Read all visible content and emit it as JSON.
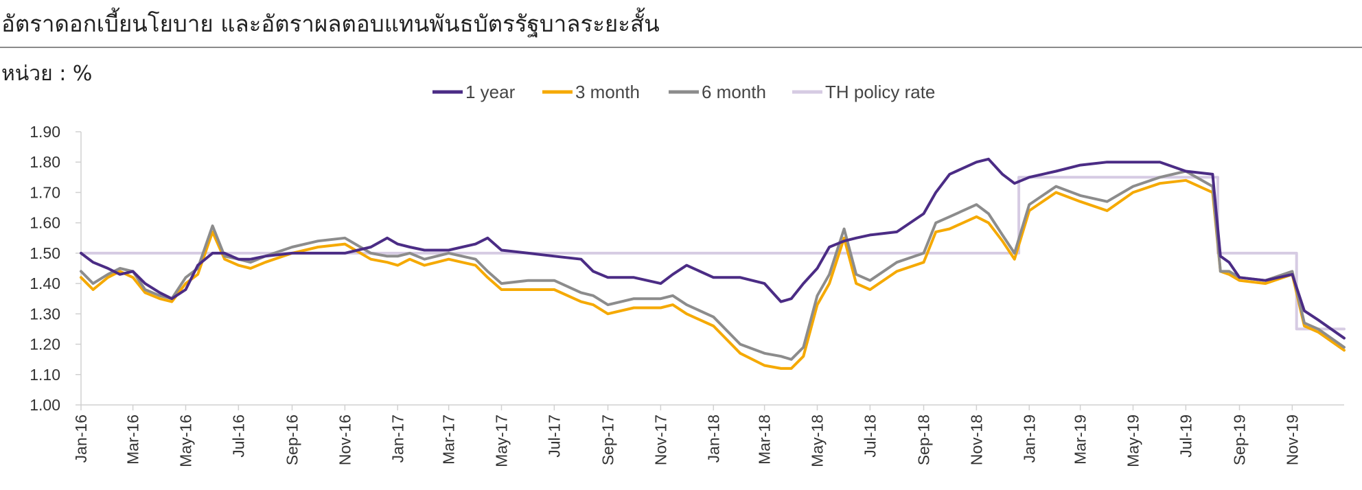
{
  "header": {
    "title": "อัตราดอกเบี้ยนโยบาย และอัตราผลตอบแทนพันธบัตรรัฐบาลระยะสั้น",
    "unit": "หน่วย : %"
  },
  "chart_data": {
    "type": "line",
    "title": "",
    "xlabel": "",
    "ylabel": "",
    "ylim": [
      1.0,
      1.9
    ],
    "yticks": [
      "1.00",
      "1.10",
      "1.20",
      "1.30",
      "1.40",
      "1.50",
      "1.60",
      "1.70",
      "1.80",
      "1.90"
    ],
    "x_range": [
      "Jan-16",
      "Dec-19"
    ],
    "xticks": [
      "Jan-16",
      "Mar-16",
      "May-16",
      "Jul-16",
      "Sep-16",
      "Nov-16",
      "Jan-17",
      "Mar-17",
      "May-17",
      "Jul-17",
      "Sep-17",
      "Nov-17",
      "Jan-18",
      "Mar-18",
      "May-18",
      "Jul-18",
      "Sep-18",
      "Nov-18",
      "Jan-19",
      "Mar-19",
      "May-19",
      "Jul-19",
      "Sep-19",
      "Nov-19"
    ],
    "grid": false,
    "legend_position": "top-center",
    "series": [
      {
        "name": "1 year",
        "color": "#4b2c85",
        "x": [
          "2016-01-01",
          "2016-01-15",
          "2016-02-01",
          "2016-02-15",
          "2016-03-01",
          "2016-03-15",
          "2016-04-01",
          "2016-04-15",
          "2016-05-01",
          "2016-05-15",
          "2016-06-01",
          "2016-06-15",
          "2016-07-01",
          "2016-07-15",
          "2016-08-01",
          "2016-09-01",
          "2016-10-01",
          "2016-11-01",
          "2016-12-01",
          "2016-12-20",
          "2017-01-01",
          "2017-01-15",
          "2017-02-01",
          "2017-03-01",
          "2017-04-01",
          "2017-04-15",
          "2017-05-01",
          "2017-06-01",
          "2017-07-01",
          "2017-08-01",
          "2017-08-15",
          "2017-09-01",
          "2017-10-01",
          "2017-11-01",
          "2017-11-15",
          "2017-12-01",
          "2018-01-01",
          "2018-02-01",
          "2018-03-01",
          "2018-03-20",
          "2018-04-01",
          "2018-04-15",
          "2018-05-01",
          "2018-05-15",
          "2018-06-01",
          "2018-06-15",
          "2018-07-01",
          "2018-08-01",
          "2018-09-01",
          "2018-09-15",
          "2018-10-01",
          "2018-11-01",
          "2018-11-15",
          "2018-12-01",
          "2018-12-15",
          "2019-01-01",
          "2019-02-01",
          "2019-03-01",
          "2019-04-01",
          "2019-05-01",
          "2019-06-01",
          "2019-07-01",
          "2019-08-01",
          "2019-08-10",
          "2019-08-20",
          "2019-09-01",
          "2019-10-01",
          "2019-11-01",
          "2019-11-15",
          "2019-12-01",
          "2019-12-31"
        ],
        "values": [
          1.5,
          1.47,
          1.45,
          1.43,
          1.44,
          1.4,
          1.37,
          1.35,
          1.38,
          1.46,
          1.5,
          1.5,
          1.48,
          1.48,
          1.49,
          1.5,
          1.5,
          1.5,
          1.52,
          1.55,
          1.53,
          1.52,
          1.51,
          1.51,
          1.53,
          1.55,
          1.51,
          1.5,
          1.49,
          1.48,
          1.44,
          1.42,
          1.42,
          1.4,
          1.43,
          1.46,
          1.42,
          1.42,
          1.4,
          1.34,
          1.35,
          1.4,
          1.45,
          1.52,
          1.54,
          1.55,
          1.56,
          1.57,
          1.63,
          1.7,
          1.76,
          1.8,
          1.81,
          1.76,
          1.73,
          1.75,
          1.77,
          1.79,
          1.8,
          1.8,
          1.8,
          1.77,
          1.76,
          1.49,
          1.47,
          1.42,
          1.41,
          1.43,
          1.31,
          1.28,
          1.22
        ]
      },
      {
        "name": "3 month",
        "color": "#f5a900",
        "x": [
          "2016-01-01",
          "2016-01-15",
          "2016-02-01",
          "2016-02-15",
          "2016-03-01",
          "2016-03-15",
          "2016-04-01",
          "2016-04-15",
          "2016-05-01",
          "2016-05-15",
          "2016-06-01",
          "2016-06-15",
          "2016-07-01",
          "2016-07-15",
          "2016-08-01",
          "2016-09-01",
          "2016-10-01",
          "2016-11-01",
          "2016-12-01",
          "2016-12-20",
          "2017-01-01",
          "2017-01-15",
          "2017-02-01",
          "2017-03-01",
          "2017-04-01",
          "2017-04-15",
          "2017-05-01",
          "2017-06-01",
          "2017-07-01",
          "2017-08-01",
          "2017-08-15",
          "2017-09-01",
          "2017-10-01",
          "2017-11-01",
          "2017-11-15",
          "2017-12-01",
          "2018-01-01",
          "2018-02-01",
          "2018-03-01",
          "2018-03-20",
          "2018-04-01",
          "2018-04-15",
          "2018-05-01",
          "2018-05-15",
          "2018-06-01",
          "2018-06-15",
          "2018-07-01",
          "2018-08-01",
          "2018-09-01",
          "2018-09-15",
          "2018-10-01",
          "2018-11-01",
          "2018-11-15",
          "2018-12-01",
          "2018-12-15",
          "2019-01-01",
          "2019-02-01",
          "2019-03-01",
          "2019-04-01",
          "2019-05-01",
          "2019-06-01",
          "2019-07-01",
          "2019-08-01",
          "2019-08-10",
          "2019-08-20",
          "2019-09-01",
          "2019-10-01",
          "2019-11-01",
          "2019-11-15",
          "2019-12-01",
          "2019-12-31"
        ],
        "values": [
          1.42,
          1.38,
          1.42,
          1.44,
          1.42,
          1.37,
          1.35,
          1.34,
          1.4,
          1.43,
          1.57,
          1.48,
          1.46,
          1.45,
          1.47,
          1.5,
          1.52,
          1.53,
          1.48,
          1.47,
          1.46,
          1.48,
          1.46,
          1.48,
          1.46,
          1.42,
          1.38,
          1.38,
          1.38,
          1.34,
          1.33,
          1.3,
          1.32,
          1.32,
          1.33,
          1.3,
          1.26,
          1.17,
          1.13,
          1.12,
          1.12,
          1.16,
          1.33,
          1.4,
          1.55,
          1.4,
          1.38,
          1.44,
          1.47,
          1.57,
          1.58,
          1.62,
          1.6,
          1.54,
          1.48,
          1.64,
          1.7,
          1.67,
          1.64,
          1.7,
          1.73,
          1.74,
          1.7,
          1.44,
          1.43,
          1.41,
          1.4,
          1.43,
          1.26,
          1.24,
          1.18
        ]
      },
      {
        "name": "6 month",
        "color": "#8c8c8c",
        "x": [
          "2016-01-01",
          "2016-01-15",
          "2016-02-01",
          "2016-02-15",
          "2016-03-01",
          "2016-03-15",
          "2016-04-01",
          "2016-04-15",
          "2016-05-01",
          "2016-05-15",
          "2016-06-01",
          "2016-06-15",
          "2016-07-01",
          "2016-07-15",
          "2016-08-01",
          "2016-09-01",
          "2016-10-01",
          "2016-11-01",
          "2016-12-01",
          "2016-12-20",
          "2017-01-01",
          "2017-01-15",
          "2017-02-01",
          "2017-03-01",
          "2017-04-01",
          "2017-04-15",
          "2017-05-01",
          "2017-06-01",
          "2017-07-01",
          "2017-08-01",
          "2017-08-15",
          "2017-09-01",
          "2017-10-01",
          "2017-11-01",
          "2017-11-15",
          "2017-12-01",
          "2018-01-01",
          "2018-02-01",
          "2018-03-01",
          "2018-03-20",
          "2018-04-01",
          "2018-04-15",
          "2018-05-01",
          "2018-05-15",
          "2018-06-01",
          "2018-06-15",
          "2018-07-01",
          "2018-08-01",
          "2018-09-01",
          "2018-09-15",
          "2018-10-01",
          "2018-11-01",
          "2018-11-15",
          "2018-12-01",
          "2018-12-15",
          "2019-01-01",
          "2019-02-01",
          "2019-03-01",
          "2019-04-01",
          "2019-05-01",
          "2019-06-01",
          "2019-07-01",
          "2019-08-01",
          "2019-08-10",
          "2019-08-20",
          "2019-09-01",
          "2019-10-01",
          "2019-11-01",
          "2019-11-15",
          "2019-12-01",
          "2019-12-31"
        ],
        "values": [
          1.44,
          1.4,
          1.43,
          1.45,
          1.44,
          1.38,
          1.36,
          1.35,
          1.42,
          1.45,
          1.59,
          1.49,
          1.48,
          1.47,
          1.49,
          1.52,
          1.54,
          1.55,
          1.5,
          1.49,
          1.49,
          1.5,
          1.48,
          1.5,
          1.48,
          1.44,
          1.4,
          1.41,
          1.41,
          1.37,
          1.36,
          1.33,
          1.35,
          1.35,
          1.36,
          1.33,
          1.29,
          1.2,
          1.17,
          1.16,
          1.15,
          1.19,
          1.36,
          1.43,
          1.58,
          1.43,
          1.41,
          1.47,
          1.5,
          1.6,
          1.62,
          1.66,
          1.63,
          1.56,
          1.5,
          1.66,
          1.72,
          1.69,
          1.67,
          1.72,
          1.75,
          1.77,
          1.72,
          1.44,
          1.44,
          1.42,
          1.41,
          1.44,
          1.27,
          1.25,
          1.19
        ]
      },
      {
        "name": "TH policy rate",
        "color": "#d6cbe3",
        "step": true,
        "x": [
          "2016-01-01",
          "2018-12-20",
          "2019-08-07",
          "2019-11-06",
          "2019-12-31"
        ],
        "values": [
          1.5,
          1.75,
          1.5,
          1.25,
          1.25
        ]
      }
    ]
  }
}
